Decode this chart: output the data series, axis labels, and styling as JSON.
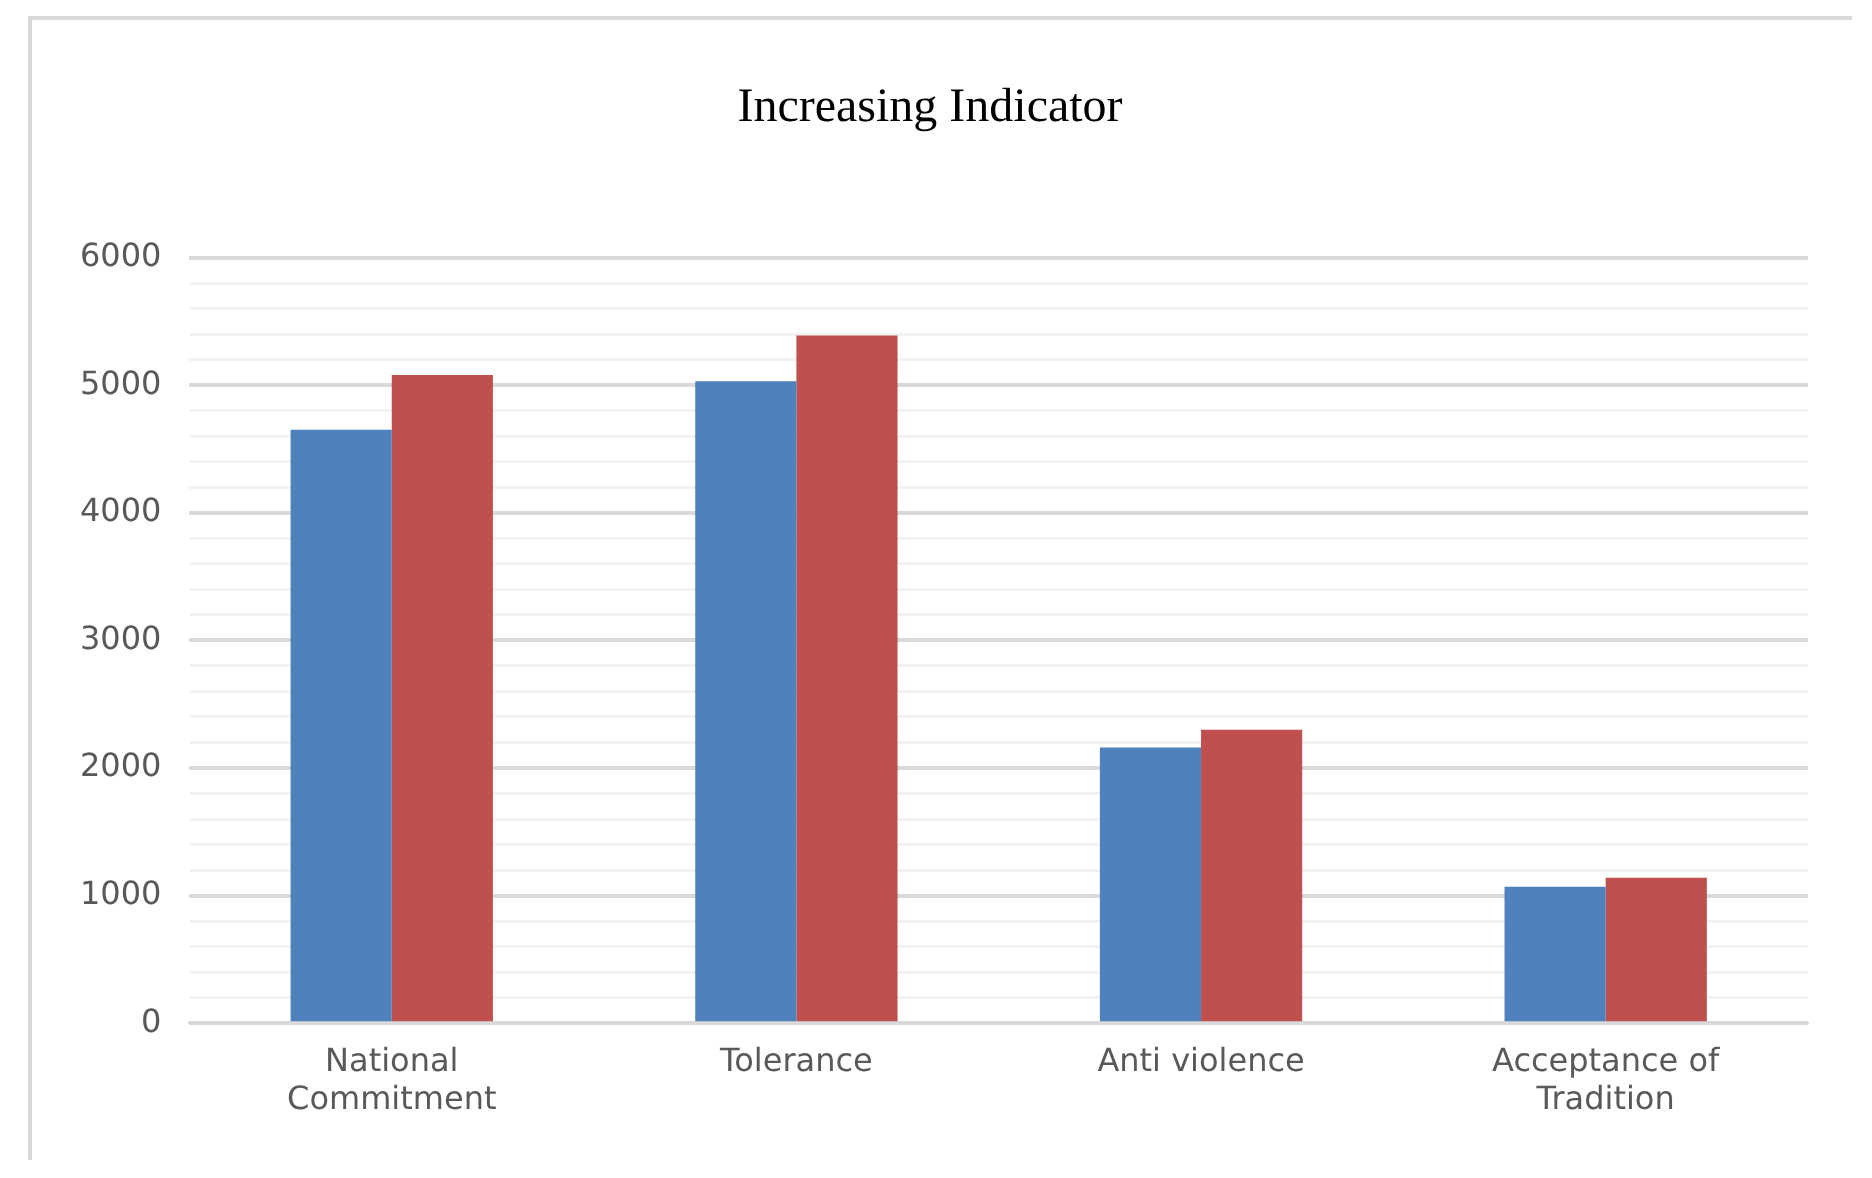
{
  "chart_data": {
    "type": "bar",
    "title": "Increasing Indicator",
    "categories": [
      "National Commitment",
      "Tolerance",
      "Anti violence",
      "Acceptance of Tradition"
    ],
    "series": [
      {
        "color": "#4f81bd",
        "values": [
          4650,
          5030,
          2160,
          1070
        ]
      },
      {
        "color": "#c0504d",
        "values": [
          5080,
          5390,
          2300,
          1140
        ]
      }
    ],
    "ylim": [
      0,
      6000
    ],
    "yticks": [
      0,
      {
        "value": 200,
        "label": null
      },
      {
        "value": 400,
        "label": null
      },
      {
        "value": 600,
        "label": null
      },
      {
        "value": 800,
        "label": null
      },
      1000,
      {
        "value": 1200,
        "label": null
      },
      {
        "value": 1400,
        "label": null
      },
      {
        "value": 1600,
        "label": null
      },
      {
        "value": 1800,
        "label": null
      },
      2000,
      {
        "value": 2200,
        "label": null
      },
      {
        "value": 2400,
        "label": null
      },
      {
        "value": 2600,
        "label": null
      },
      {
        "value": 2800,
        "label": null
      },
      3000,
      {
        "value": 3200,
        "label": null
      },
      {
        "value": 3400,
        "label": null
      },
      {
        "value": 3600,
        "label": null
      },
      {
        "value": 3800,
        "label": null
      },
      4000,
      {
        "value": 4200,
        "label": null
      },
      {
        "value": 4400,
        "label": null
      },
      {
        "value": 4600,
        "label": null
      },
      {
        "value": 4800,
        "label": null
      },
      5000,
      {
        "value": 5200,
        "label": null
      },
      {
        "value": 5400,
        "label": null
      },
      {
        "value": 5600,
        "label": null
      },
      {
        "value": 5800,
        "label": null
      },
      6000
    ],
    "grid": "y",
    "legend": false
  }
}
